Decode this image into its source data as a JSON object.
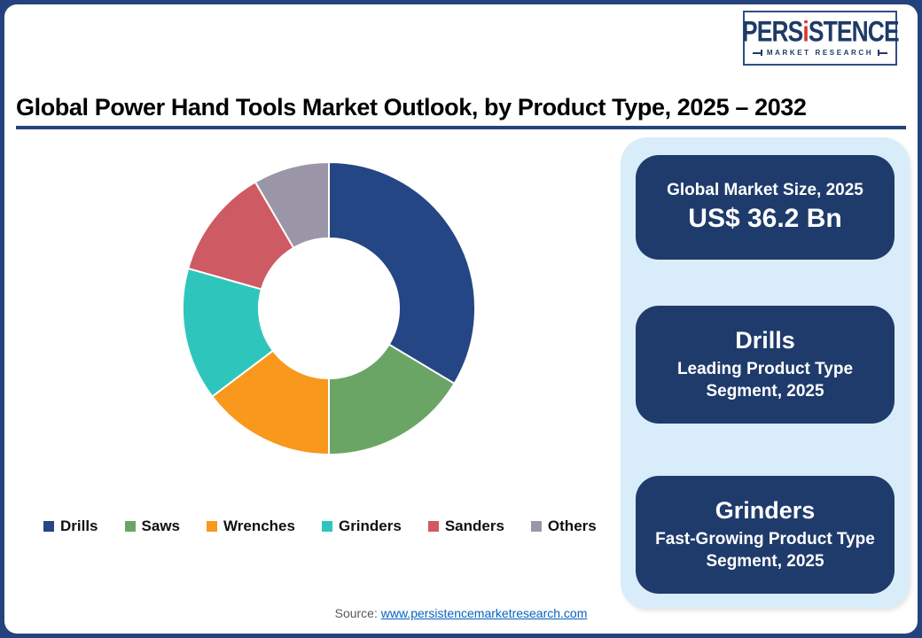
{
  "header": {
    "title": "Global Power Hand Tools Market Outlook, by Product Type, 2025 – 2032"
  },
  "logo": {
    "brand_pre": "PERS",
    "brand_i": "i",
    "brand_post": "STENCE",
    "tagline": "MARKET RESEARCH",
    "navy": "#1E3A66",
    "red": "#D93831"
  },
  "chart_data": {
    "type": "pie",
    "donut": true,
    "title": "Global Power Hand Tools Market Outlook, by Product Type, 2025 – 2032",
    "categories": [
      "Drills",
      "Saws",
      "Wrenches",
      "Grinders",
      "Sanders",
      "Others"
    ],
    "values": [
      33.6,
      16.4,
      14.7,
      14.7,
      12.2,
      8.4
    ],
    "value_unit": "% share (estimated from arc angles)",
    "colors": [
      "#254684",
      "#6BA566",
      "#F8981D",
      "#2EC6BC",
      "#CE5A64",
      "#9B96A7"
    ],
    "start_angle_deg": 0,
    "inner_radius_ratio": 0.48,
    "legend_position": "bottom",
    "segment_gap_color": "#FFFFFF"
  },
  "side_panel": {
    "bg_color": "#D9ECF9",
    "box_color": "#1F3B6C",
    "boxes": [
      {
        "line1": "Global Market Size, 2025",
        "line2": "US$ 36.2 Bn"
      },
      {
        "line1": "Drills",
        "line2": "Leading Product Type Segment, 2025"
      },
      {
        "line1": "Grinders",
        "line2": "Fast-Growing Product Type Segment, 2025"
      }
    ]
  },
  "footer": {
    "source_label": "Source:",
    "source_link": "www.persistencemarketresearch.com"
  }
}
